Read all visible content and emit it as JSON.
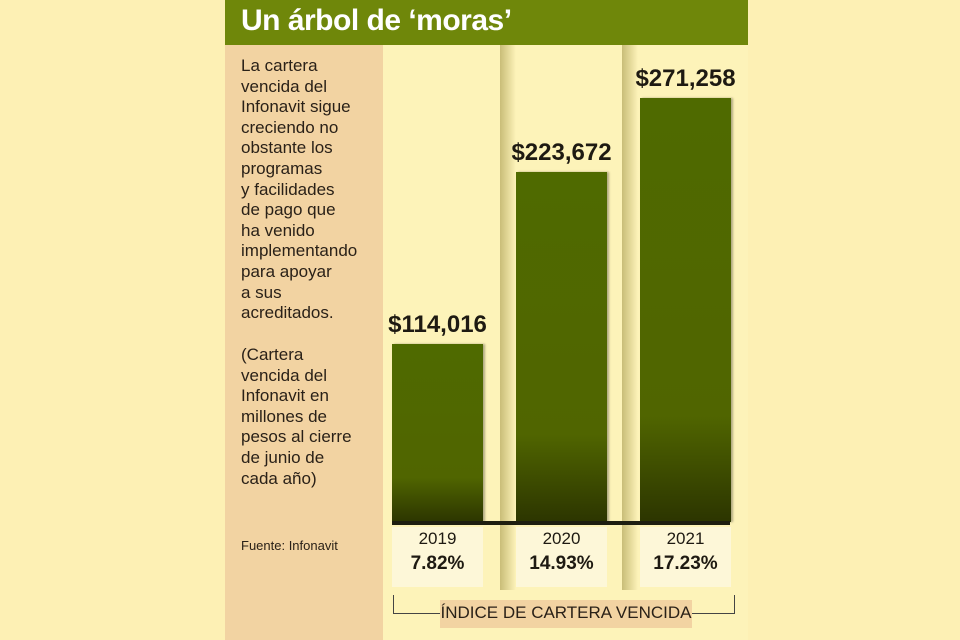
{
  "title": "Un árbol de ‘moras’",
  "description_lines": [
    "La cartera",
    "vencida del",
    "Infonavit sigue",
    "creciendo no",
    "obstante los",
    "programas",
    "y facilidades",
    "de pago que",
    "ha venido",
    "implementando",
    "para apoyar",
    "a sus",
    "acreditados."
  ],
  "note_lines": [
    "(Cartera",
    "vencida del",
    "Infonavit en",
    "millones de",
    "pesos al cierre",
    "de junio de",
    "cada año)"
  ],
  "source": "Fuente: Infonavit",
  "colors": {
    "header": "#6f870a",
    "bar": "#506500",
    "panel": "#f2d3a2",
    "background": "#fdf0b4"
  },
  "chart_data": {
    "type": "bar",
    "title": "Un árbol de ‘moras’",
    "categories": [
      "2019",
      "2020",
      "2021"
    ],
    "values": [
      114016,
      223672,
      271258
    ],
    "value_labels": [
      "$114,016",
      "$223,672",
      "$271,258"
    ],
    "secondary": {
      "label": "ÍNDICE DE CARTERA VENCIDA",
      "values": [
        "7.82%",
        "14.93%",
        "17.23%"
      ]
    },
    "xlabel": "",
    "ylabel": "",
    "grid": false
  }
}
